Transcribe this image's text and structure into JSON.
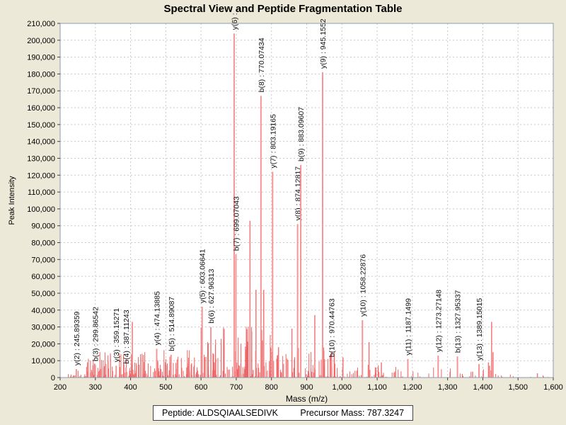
{
  "title": "Spectral View and Peptide Fragmentation Table",
  "footer": {
    "peptide": "Peptide: ALDSQIAALSEDIVK",
    "precursor": "Precursor Mass: 787.3247"
  },
  "colors": {
    "background": "#ece9d8",
    "plot_bg": "#ffffff",
    "grid": "#c9c9c9",
    "axis_border": "#8c9bab",
    "tick": "#404040",
    "noise": "#ee6565",
    "medium": "#f07878",
    "major": "#f59595",
    "label_text": "#111111"
  },
  "chart_data": {
    "type": "bar",
    "title": "Spectral View and Peptide Fragmentation Table",
    "xlabel": "Mass (m/z)",
    "ylabel": "Peak Intensity",
    "xlim": [
      200,
      1600
    ],
    "ylim": [
      0,
      210000
    ],
    "grid": "dashed",
    "x_ticks": [
      "200",
      "300",
      "400",
      "500",
      "600",
      "700",
      "800",
      "900",
      "1,000",
      "1,100",
      "1,200",
      "1,300",
      "1,400",
      "1,500",
      "1,600"
    ],
    "y_ticks": [
      "0",
      "10,000",
      "20,000",
      "30,000",
      "40,000",
      "50,000",
      "60,000",
      "70,000",
      "80,000",
      "90,000",
      "100,000",
      "110,000",
      "120,000",
      "130,000",
      "140,000",
      "150,000",
      "160,000",
      "170,000",
      "180,000",
      "190,000",
      "200,000",
      "210,000"
    ],
    "labeled_peaks": [
      {
        "label": "y(2) : 245.89359",
        "mz": 245.89359,
        "intensity": 5000
      },
      {
        "label": "b(3) : 299.86542",
        "mz": 299.86542,
        "intensity": 7500
      },
      {
        "label": "y(3) : 359.15271",
        "mz": 359.15271,
        "intensity": 7000
      },
      {
        "label": "b(4) : 387.11243",
        "mz": 387.11243,
        "intensity": 6000
      },
      {
        "label": "y(4) : 474.13885",
        "mz": 474.13885,
        "intensity": 17000
      },
      {
        "label": "b(5) : 514.89087",
        "mz": 514.89087,
        "intensity": 13500
      },
      {
        "label": "y(5) : 603.06641",
        "mz": 603.06641,
        "intensity": 42000
      },
      {
        "label": "b(6) : 627.96313",
        "mz": 627.96313,
        "intensity": 30000
      },
      {
        "label": "y(6) :",
        "mz": 694.0,
        "intensity": 204000
      },
      {
        "label": "b(7) : 699.07043",
        "mz": 699.07043,
        "intensity": 73000
      },
      {
        "label": "b(8) : 770.07434",
        "mz": 770.07434,
        "intensity": 167000
      },
      {
        "label": "y(7) : 803.19165",
        "mz": 803.19165,
        "intensity": 122000
      },
      {
        "label": "y(8) : 874.12817",
        "mz": 874.12817,
        "intensity": 91000
      },
      {
        "label": "b(9) : 883.09607",
        "mz": 883.09607,
        "intensity": 126000
      },
      {
        "label": "y(9) : 945.1552",
        "mz": 945.1552,
        "intensity": 181000
      },
      {
        "label": "b(10) : 970.44763",
        "mz": 970.44763,
        "intensity": 10000
      },
      {
        "label": "y(10) : 1058.22876",
        "mz": 1058.22876,
        "intensity": 34000
      },
      {
        "label": "y(11) : 1187.1499",
        "mz": 1187.1499,
        "intensity": 11000
      },
      {
        "label": "y(12) : 1273.27148",
        "mz": 1273.27148,
        "intensity": 13000
      },
      {
        "label": "b(13) : 1327.95337",
        "mz": 1327.95337,
        "intensity": 12500
      },
      {
        "label": "y(13) : 1389.15015",
        "mz": 1389.15015,
        "intensity": 8000
      }
    ],
    "unlabeled_peaks": [
      [
        405,
        33000
      ],
      [
        739,
        93000
      ],
      [
        756,
        52000
      ],
      [
        778,
        52000
      ],
      [
        820,
        18000
      ],
      [
        858,
        29000
      ],
      [
        923,
        37000
      ],
      [
        1003,
        12000
      ],
      [
        1077,
        21000
      ],
      [
        1112,
        9000
      ],
      [
        1371,
        3500
      ],
      [
        1416,
        9000
      ],
      [
        1419,
        7000
      ],
      [
        1425,
        33000
      ],
      [
        1429,
        15000
      ],
      [
        1555,
        2500
      ]
    ],
    "noise": {
      "seed": 1337,
      "floor": 300,
      "regions": [
        {
          "from": 212,
          "to": 252,
          "count": 14,
          "max": 4000
        },
        {
          "from": 252,
          "to": 420,
          "count": 95,
          "max": 15000
        },
        {
          "from": 420,
          "to": 600,
          "count": 110,
          "max": 16000
        },
        {
          "from": 600,
          "to": 800,
          "count": 120,
          "max": 30000
        },
        {
          "from": 800,
          "to": 980,
          "count": 95,
          "max": 18000
        },
        {
          "from": 980,
          "to": 1100,
          "count": 35,
          "max": 8000
        },
        {
          "from": 1100,
          "to": 1250,
          "count": 28,
          "max": 7000
        },
        {
          "from": 1250,
          "to": 1470,
          "count": 22,
          "max": 6000
        },
        {
          "from": 1470,
          "to": 1590,
          "count": 6,
          "max": 2000
        }
      ]
    }
  }
}
